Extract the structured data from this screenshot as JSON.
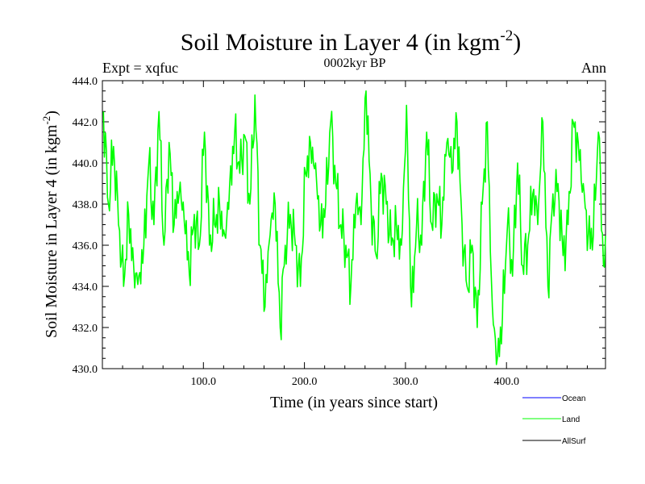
{
  "chart_data": {
    "type": "line",
    "title": "Soil Moisture in Layer 4 (in kgm",
    "title_sup": "-2",
    "title_close": ")",
    "subtitle": "0002kyr BP",
    "left_label": "Expt = xqfuc",
    "right_label": "Ann",
    "xlabel": "Time (in years since start)",
    "ylabel": "Soil Moisture in Layer 4 (in kgm",
    "ylabel_sup": "-2",
    "ylabel_close": ")",
    "xlim": [
      0,
      498
    ],
    "ylim": [
      430.0,
      444.0
    ],
    "x_ticks": [
      100,
      200,
      300,
      400
    ],
    "x_tick_labels": [
      "100.0",
      "200.0",
      "300.0",
      "400.0"
    ],
    "y_ticks": [
      430,
      432,
      434,
      436,
      438,
      440,
      442,
      444
    ],
    "y_tick_labels": [
      "430.0",
      "432.0",
      "434.0",
      "436.0",
      "438.0",
      "440.0",
      "442.0",
      "444.0"
    ],
    "legend": [
      {
        "name": "Ocean",
        "color": "#0000ff"
      },
      {
        "name": "Land",
        "color": "#00ff00"
      },
      {
        "name": "AllSurf",
        "color": "#000000"
      }
    ],
    "series": [
      {
        "name": "Land",
        "color": "#00ff00",
        "x_start": 1,
        "x_step": 5,
        "values": [
          442.5,
          438.0,
          440.8,
          437.0,
          434.0,
          437.5,
          435.0,
          434.5,
          436.0,
          440.0,
          437.0,
          442.5,
          436.0,
          441.0,
          437.0,
          438.5,
          437.2,
          434.6,
          437.5,
          436.0,
          441.5,
          436.0,
          437.0,
          438.0,
          436.5,
          439.0,
          441.5,
          439.5,
          441.3,
          438.0,
          443.3,
          436.0,
          433.0,
          436.5,
          438.0,
          432.0,
          436.0,
          437.5,
          436.0,
          434.0,
          439.5,
          441.0,
          440.0,
          437.0,
          438.0,
          442.0,
          439.0,
          437.0,
          436.0,
          434.0,
          438.0,
          437.0,
          443.5,
          438.0,
          435.5,
          439.5,
          438.0,
          436.0,
          437.0,
          436.0,
          442.8,
          433.0,
          437.0,
          436.0,
          441.5,
          437.0,
          438.5,
          437.0,
          441.0,
          439.5,
          442.0,
          437.0,
          434.0,
          436.0,
          432.0,
          438.0,
          442.0,
          433.0,
          430.5,
          432.5,
          437.0,
          434.5,
          440.0,
          435.0,
          436.0,
          438.5,
          437.0,
          442.0,
          434.0,
          438.5,
          439.0,
          435.5,
          437.0,
          442.0,
          441.0,
          439.0,
          436.5,
          436.5,
          441.5,
          435.0
        ],
        "note": "values are approximate readings of the plotted trace, one every 5 years"
      }
    ]
  }
}
